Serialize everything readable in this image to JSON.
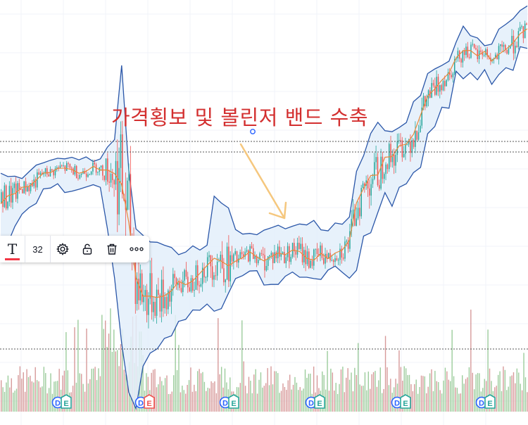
{
  "annotation": {
    "text": "가격횡보 및 볼린저 밴드 수축",
    "color": "#d32f2f",
    "arrow_color": "#f5c77e"
  },
  "toolbar": {
    "font_size_value": "32",
    "icons": [
      "text-icon",
      "gear-icon",
      "unlock-icon",
      "trash-icon",
      "more-icon"
    ]
  },
  "colors": {
    "band_line": "#2a56a8",
    "band_fill": "#e3effa",
    "basis_line": "#e8893a",
    "candle_up": "#26a69a",
    "candle_down": "#ef5350",
    "volume_up": "#9ccc9c",
    "volume_down": "#d79a9a",
    "dotted_line": "#555555"
  },
  "events": {
    "labels": [
      "D",
      "E"
    ],
    "groups": [
      {
        "d_color": "#2962ff",
        "e_color": "#26a69a"
      },
      {
        "d_color": "#2962ff",
        "e_color": "#ef5350"
      },
      {
        "d_color": "#2962ff",
        "e_color": "#26a69a"
      },
      {
        "d_color": "#2962ff",
        "e_color": "#26a69a"
      },
      {
        "d_color": "#2962ff",
        "e_color": "#26a69a"
      },
      {
        "d_color": "#2962ff",
        "e_color": "#26a69a"
      }
    ]
  },
  "chart_data": {
    "type": "line",
    "indicator": "bollinger",
    "grid": true,
    "x": [
      0,
      10,
      20,
      30,
      40,
      50,
      60,
      70,
      80,
      90,
      100,
      110,
      120,
      130,
      140,
      150,
      160,
      170,
      180,
      190,
      200,
      210,
      220,
      230,
      240,
      250,
      260,
      270,
      280,
      290,
      300,
      310,
      320,
      330,
      340,
      350,
      360,
      370,
      380,
      390,
      400,
      410,
      420,
      430,
      440,
      450,
      460,
      470,
      480,
      490,
      500,
      510,
      520,
      530,
      540,
      550,
      560,
      570,
      580,
      590,
      600,
      610,
      620,
      630,
      640,
      650,
      660,
      670,
      680,
      690,
      700,
      710,
      720,
      730,
      740
    ],
    "series": [
      {
        "role": "upper",
        "values": [
          47.0,
          46.0,
          46.1,
          45.4,
          47.5,
          49.5,
          50.2,
          51.0,
          51.6,
          51.4,
          51.9,
          51.1,
          52.0,
          50.6,
          51.4,
          55.0,
          57.3,
          80.0,
          48.0,
          30.0,
          28.0,
          26.0,
          25.9,
          25.0,
          24.3,
          22.1,
          22.9,
          24.8,
          23.5,
          25.0,
          40.0,
          37.9,
          36.4,
          29.8,
          28.4,
          28.6,
          28.2,
          29.6,
          30.3,
          31.1,
          30.0,
          30.8,
          31.5,
          31.2,
          32.6,
          29.7,
          29.4,
          31.8,
          31.4,
          33.6,
          47.6,
          52.4,
          59.2,
          62.6,
          60.0,
          59.7,
          61.0,
          62.5,
          68.9,
          70.8,
          77.5,
          78.9,
          80.0,
          81.3,
          87.1,
          92.0,
          89.1,
          88.4,
          86.0,
          86.5,
          91.1,
          92.6,
          94.3,
          96.8,
          98.2
        ]
      },
      {
        "role": "basis",
        "values": [
          37.7,
          40.1,
          40.8,
          42.7,
          43.0,
          44.9,
          47.1,
          47.2,
          48.5,
          48.6,
          48.1,
          47.0,
          47.6,
          49.1,
          48.0,
          48.0,
          46.9,
          43.6,
          32.0,
          15.0,
          9.4,
          9.4,
          9.0,
          9.5,
          11.0,
          14.0,
          12.9,
          14.1,
          16.4,
          18.8,
          21.0,
          20.1,
          18.7,
          20.1,
          21.2,
          23.0,
          21.4,
          20.2,
          21.5,
          22.6,
          22.1,
          23.5,
          23.1,
          21.0,
          20.4,
          22.5,
          20.9,
          22.6,
          23.5,
          26.5,
          38.0,
          42.4,
          46.3,
          46.5,
          51.9,
          52.1,
          55.4,
          55.9,
          58.9,
          64.8,
          70.6,
          72.8,
          75.5,
          77.7,
          82.3,
          84.5,
          84.6,
          82.9,
          84.3,
          81.3,
          83.4,
          84.9,
          86.9,
          89.7,
          91.2
        ]
      },
      {
        "role": "lower",
        "values": [
          22.7,
          25.6,
          30.8,
          34.5,
          36.5,
          37.8,
          42.2,
          42.5,
          43.8,
          41.1,
          41.5,
          42.1,
          42.8,
          43.5,
          42.7,
          30.0,
          15.0,
          -5.0,
          -20.0,
          -25.0,
          -12.0,
          -8.0,
          -6.7,
          -3.5,
          -2.7,
          1.7,
          2.3,
          5.2,
          5.1,
          7.0,
          4.8,
          5.6,
          10.3,
          14.8,
          15.7,
          17.1,
          17.2,
          12.8,
          13.0,
          13.0,
          15.5,
          16.8,
          15.2,
          15.2,
          14.8,
          14.5,
          17.4,
          18.6,
          16.7,
          14.9,
          17.3,
          27.8,
          28.8,
          35.0,
          41.1,
          36.9,
          42.7,
          43.8,
          47.2,
          48.8,
          59.1,
          61.3,
          67.2,
          66.9,
          78.2,
          75.9,
          77.8,
          75.6,
          78.7,
          74.2,
          77.2,
          79.3,
          78.5,
          85.7,
          85.2
        ]
      }
    ],
    "ylim": [
      -30,
      100
    ]
  }
}
